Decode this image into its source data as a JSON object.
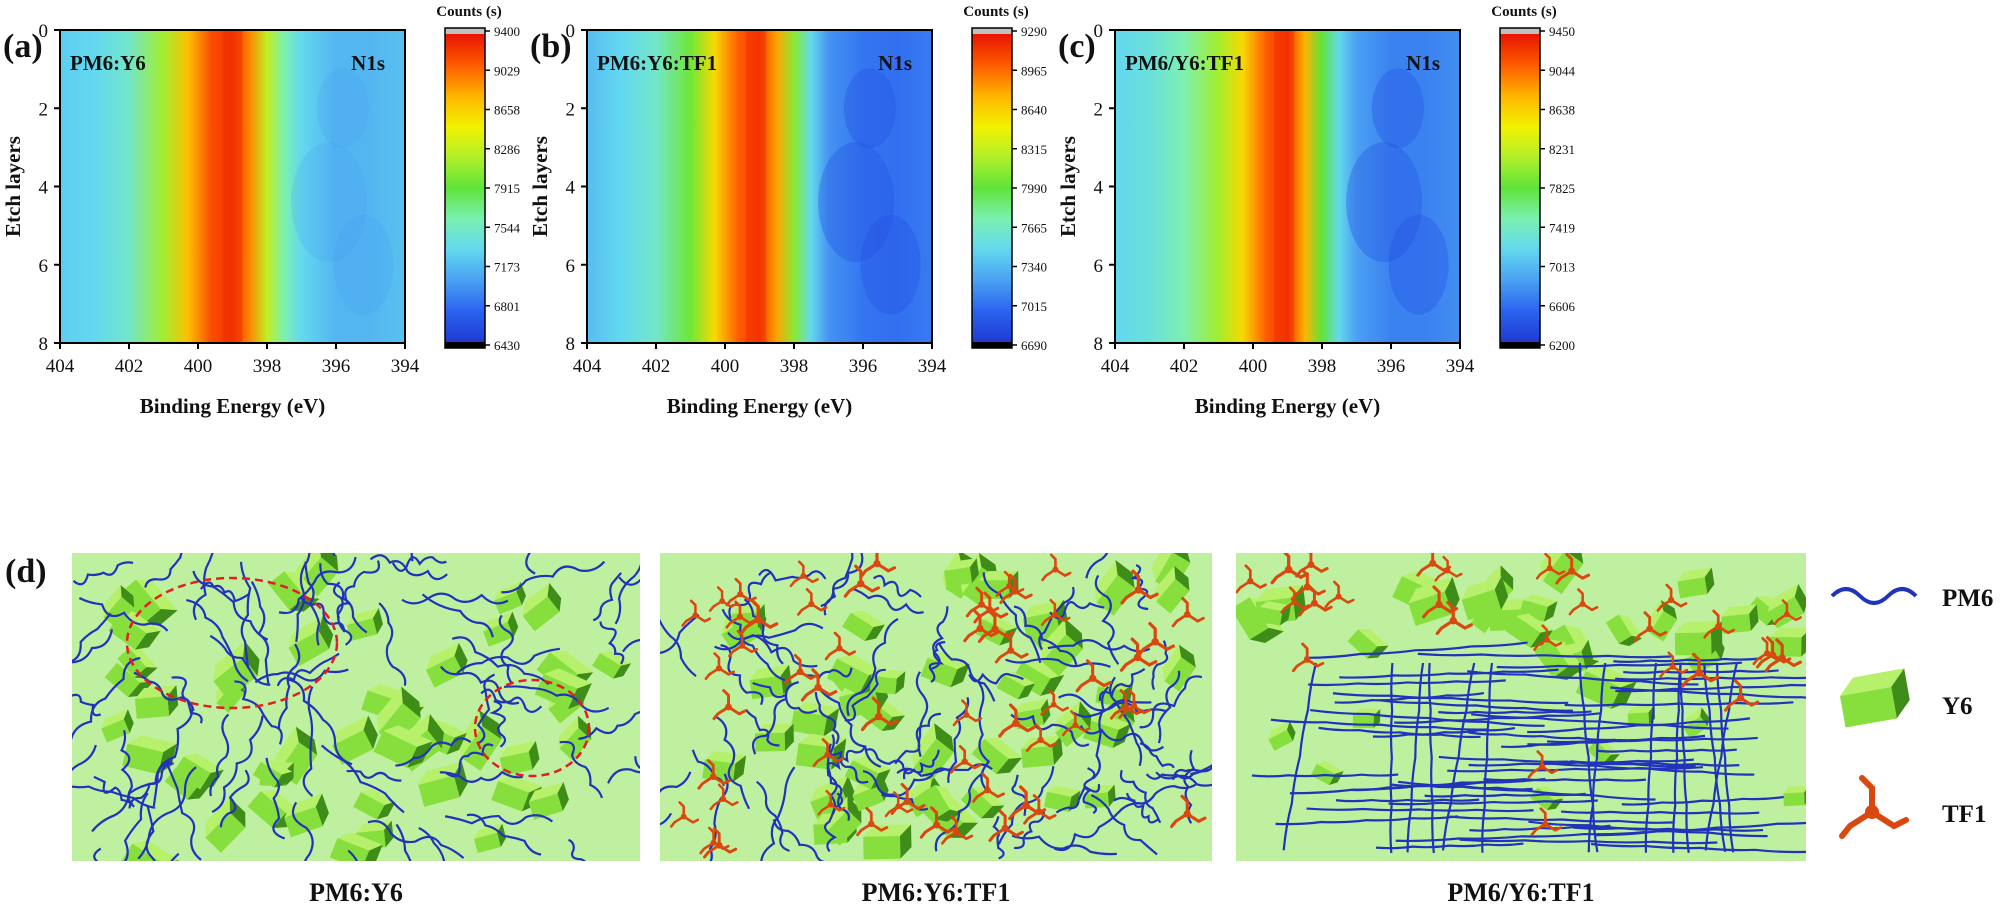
{
  "figure": {
    "colormap": [
      "#000000",
      "#1f3bd1",
      "#2b63f0",
      "#4aa0f2",
      "#63d8ef",
      "#7cf0b0",
      "#5ee43a",
      "#b3f02a",
      "#f3f200",
      "#ffb400",
      "#ff5a00",
      "#e81400",
      "#c0c0c0"
    ],
    "bottom_panel": {
      "label": "(d)",
      "legend": [
        {
          "name": "PM6",
          "icon": "blue-wave-icon",
          "color": "#2233bb"
        },
        {
          "name": "Y6",
          "icon": "green-block-icon",
          "color": "#7ad83a"
        },
        {
          "name": "TF1",
          "icon": "red-star-molecule-icon",
          "color": "#d9480f"
        }
      ],
      "scenes": [
        {
          "title": "PM6:Y6",
          "background": "#bff0a0"
        },
        {
          "title": "PM6:Y6:TF1",
          "background": "#bff0a0"
        },
        {
          "title": "PM6/Y6:TF1",
          "background": "#bff0a0"
        }
      ]
    }
  },
  "chart_data": [
    {
      "type": "heatmap",
      "panel": "(a)",
      "sample": "PM6:Y6",
      "annotation": "N1s",
      "xlabel": "Binding Energy (eV)",
      "ylabel": "Etch layers",
      "xlim": [
        404,
        394
      ],
      "ylim": [
        8,
        0
      ],
      "xticks": [
        "404",
        "402",
        "400",
        "398",
        "396",
        "394"
      ],
      "yticks": [
        "0",
        "2",
        "4",
        "6",
        "8"
      ],
      "colorbar_title": "Counts (s)",
      "colorbar_ticks": [
        "6430",
        "6801",
        "7173",
        "7544",
        "7915",
        "8286",
        "8658",
        "9029",
        "9400"
      ],
      "peak_center_eV": 399.0,
      "profile": [
        {
          "energy": 404,
          "value": 0.28
        },
        {
          "energy": 403,
          "value": 0.3
        },
        {
          "energy": 402,
          "value": 0.36
        },
        {
          "energy": 401,
          "value": 0.58
        },
        {
          "energy": 400.3,
          "value": 0.78
        },
        {
          "energy": 399.6,
          "value": 0.92
        },
        {
          "energy": 399.0,
          "value": 0.95
        },
        {
          "energy": 398.5,
          "value": 0.85
        },
        {
          "energy": 398,
          "value": 0.62
        },
        {
          "energy": 397.5,
          "value": 0.4
        },
        {
          "energy": 397,
          "value": 0.3
        },
        {
          "energy": 396,
          "value": 0.24
        },
        {
          "energy": 395,
          "value": 0.24
        },
        {
          "energy": 394,
          "value": 0.26
        }
      ]
    },
    {
      "type": "heatmap",
      "panel": "(b)",
      "sample": "PM6:Y6:TF1",
      "annotation": "N1s",
      "xlabel": "Binding Energy (eV)",
      "ylabel": "Etch layers",
      "xlim": [
        404,
        394
      ],
      "ylim": [
        8,
        0
      ],
      "xticks": [
        "404",
        "402",
        "400",
        "398",
        "396",
        "394"
      ],
      "yticks": [
        "0",
        "2",
        "4",
        "6",
        "8"
      ],
      "colorbar_title": "Counts (s)",
      "colorbar_ticks": [
        "6690",
        "7015",
        "7340",
        "7665",
        "7990",
        "8315",
        "8640",
        "8965",
        "9290"
      ],
      "peak_center_eV": 399.1,
      "profile": [
        {
          "energy": 404,
          "value": 0.25
        },
        {
          "energy": 403,
          "value": 0.3
        },
        {
          "energy": 402,
          "value": 0.36
        },
        {
          "energy": 401,
          "value": 0.52
        },
        {
          "energy": 400.3,
          "value": 0.74
        },
        {
          "energy": 399.6,
          "value": 0.9
        },
        {
          "energy": 399.0,
          "value": 0.94
        },
        {
          "energy": 398.5,
          "value": 0.82
        },
        {
          "energy": 398,
          "value": 0.55
        },
        {
          "energy": 397.5,
          "value": 0.3
        },
        {
          "energy": 397,
          "value": 0.18
        },
        {
          "energy": 396,
          "value": 0.13
        },
        {
          "energy": 395,
          "value": 0.12
        },
        {
          "energy": 394,
          "value": 0.14
        }
      ]
    },
    {
      "type": "heatmap",
      "panel": "(c)",
      "sample": "PM6/Y6:TF1",
      "annotation": "N1s",
      "xlabel": "Binding Energy (eV)",
      "ylabel": "Etch layers",
      "xlim": [
        404,
        394
      ],
      "ylim": [
        8,
        0
      ],
      "xticks": [
        "404",
        "402",
        "400",
        "398",
        "396",
        "394"
      ],
      "yticks": [
        "0",
        "2",
        "4",
        "6",
        "8"
      ],
      "colorbar_title": "Counts (s)",
      "colorbar_ticks": [
        "6200",
        "6606",
        "7013",
        "7419",
        "7825",
        "8231",
        "8638",
        "9044",
        "9450"
      ],
      "peak_center_eV": 399.1,
      "profile": [
        {
          "energy": 404,
          "value": 0.3
        },
        {
          "energy": 403,
          "value": 0.33
        },
        {
          "energy": 402,
          "value": 0.4
        },
        {
          "energy": 401,
          "value": 0.58
        },
        {
          "energy": 400.3,
          "value": 0.74
        },
        {
          "energy": 399.6,
          "value": 0.9
        },
        {
          "energy": 399.0,
          "value": 0.95
        },
        {
          "energy": 398.5,
          "value": 0.8
        },
        {
          "energy": 398,
          "value": 0.5
        },
        {
          "energy": 397.5,
          "value": 0.3
        },
        {
          "energy": 397,
          "value": 0.2
        },
        {
          "energy": 396,
          "value": 0.15
        },
        {
          "energy": 395,
          "value": 0.15
        },
        {
          "energy": 394,
          "value": 0.17
        }
      ]
    }
  ]
}
